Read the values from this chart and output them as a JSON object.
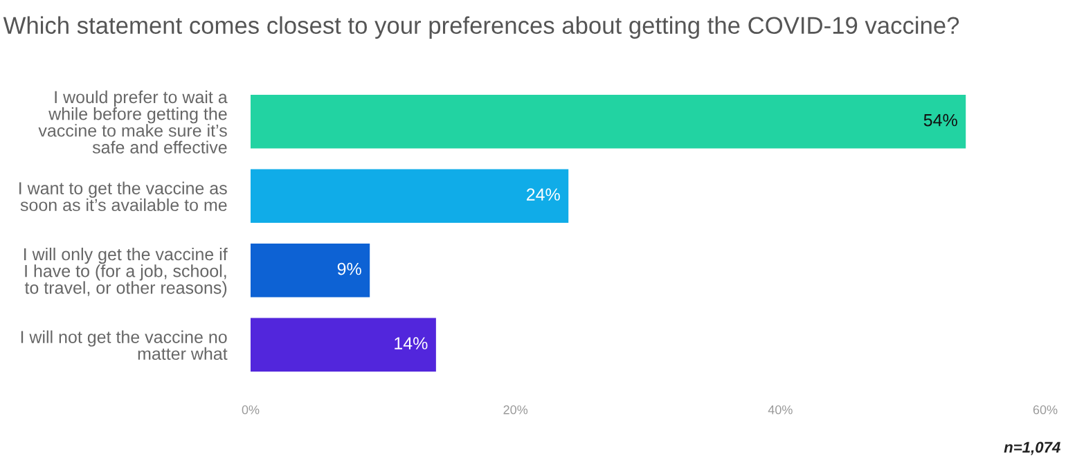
{
  "chart_data": {
    "type": "bar",
    "orientation": "horizontal",
    "title": "Which statement comes closest to your preferences about getting the COVID-19 vaccine?",
    "categories": [
      "I would prefer to wait a\nwhile before getting the\nvaccine to make sure it’s\nsafe and effective",
      "I want to get the vaccine as\nsoon as it’s available to me",
      "I will only get the vaccine if\nI have to (for a job, school,\nto travel, or other reasons)",
      "I will not get the vaccine no\nmatter what"
    ],
    "values": [
      54,
      24,
      9,
      14
    ],
    "colors": [
      "#22d3a2",
      "#10ace8",
      "#0d62d4",
      "#5226dc"
    ],
    "value_labels": [
      "54%",
      "24%",
      "9%",
      "14%"
    ],
    "xlim": [
      0,
      60
    ],
    "xticks": [
      {
        "value": 0,
        "label": "0%"
      },
      {
        "value": 20,
        "label": "20%"
      },
      {
        "value": 40,
        "label": "40%"
      },
      {
        "value": 60,
        "label": "60%"
      }
    ],
    "grid": false,
    "legend": false,
    "annotations": [
      "n=1,074"
    ]
  }
}
